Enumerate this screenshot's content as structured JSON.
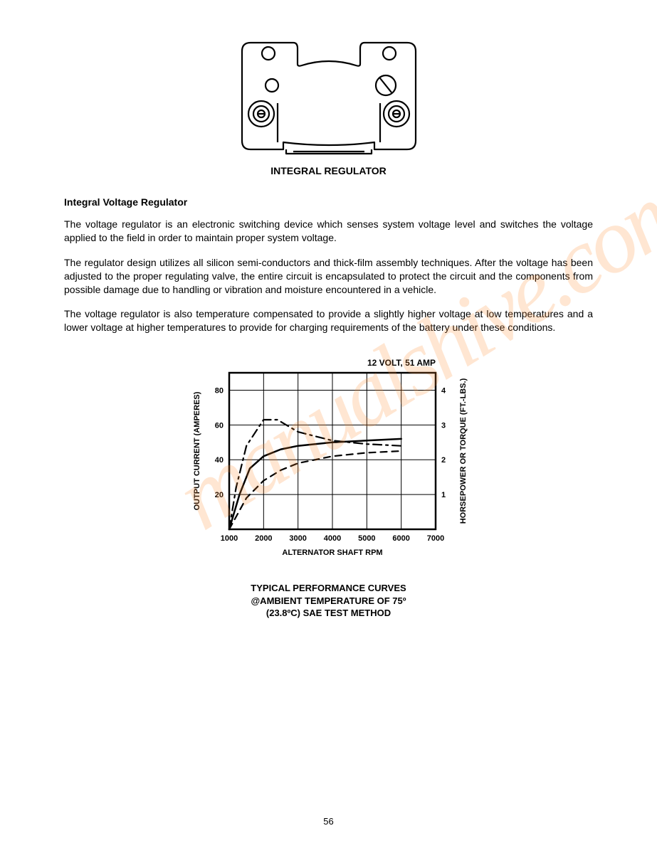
{
  "figure1": {
    "caption": "INTEGRAL REGULATOR",
    "stroke_color": "#000000",
    "stroke_width": 2.2,
    "fill": "#ffffff"
  },
  "section_heading": "Integral Voltage Regulator",
  "para1": "The voltage regulator is an electronic switching device which senses system voltage level and switches the voltage applied to the field in order to maintain proper system voltage.",
  "para2": "The regulator design utilizes all silicon semi-conductors and thick-film assembly techniques. After the voltage has been adjusted to the proper regulating valve, the entire circuit is encapsulated to protect the circuit and the components from possible damage due to handling or vibration and moisture encountered in a vehicle.",
  "para3": "The voltage regulator is also temperature compensated to provide a slightly higher voltage at low temperatures and a lower voltage at higher temperatures to provide for charging requirements of the battery under these conditions.",
  "chart": {
    "type": "line",
    "title_top": "12 VOLT, 51 AMP",
    "y_left_label": "OUTPUT CURRENT (AMPERES)",
    "y_right_label": "HORSEPOWER OR TORQUE (FT.-LBS.)",
    "x_label": "ALTERNATOR SHAFT RPM",
    "caption_line1": "TYPICAL PERFORMANCE CURVES",
    "caption_line2": "@AMBIENT TEMPERATURE OF 75º",
    "caption_line3": "(23.8ºC) SAE TEST METHOD",
    "x_ticks": [
      1000,
      2000,
      3000,
      4000,
      5000,
      6000,
      7000
    ],
    "y_left_ticks": [
      20,
      40,
      60,
      80
    ],
    "y_right_ticks": [
      1,
      2,
      3,
      4
    ],
    "xlim": [
      1000,
      7000
    ],
    "ylim_left": [
      0,
      90
    ],
    "ylim_right": [
      0,
      4.5
    ],
    "series": [
      {
        "name": "output-current",
        "style": "solid",
        "width": 2.5,
        "color": "#000000",
        "axis": "left",
        "points": [
          {
            "x": 1000,
            "y": 0
          },
          {
            "x": 1300,
            "y": 20
          },
          {
            "x": 1600,
            "y": 35
          },
          {
            "x": 2000,
            "y": 42
          },
          {
            "x": 2500,
            "y": 46
          },
          {
            "x": 3000,
            "y": 48
          },
          {
            "x": 4000,
            "y": 50
          },
          {
            "x": 5000,
            "y": 51
          },
          {
            "x": 6000,
            "y": 52
          }
        ]
      },
      {
        "name": "horsepower-torque-peak",
        "style": "dash-dot",
        "width": 2.2,
        "color": "#000000",
        "axis": "right",
        "points": [
          {
            "x": 1000,
            "y": 0
          },
          {
            "x": 1200,
            "y": 1.2
          },
          {
            "x": 1500,
            "y": 2.4
          },
          {
            "x": 2000,
            "y": 3.15
          },
          {
            "x": 2400,
            "y": 3.15
          },
          {
            "x": 3000,
            "y": 2.8
          },
          {
            "x": 4000,
            "y": 2.55
          },
          {
            "x": 5000,
            "y": 2.45
          },
          {
            "x": 6000,
            "y": 2.4
          }
        ]
      },
      {
        "name": "horsepower-torque-low",
        "style": "dashed",
        "width": 2.2,
        "color": "#000000",
        "axis": "right",
        "points": [
          {
            "x": 1000,
            "y": 0
          },
          {
            "x": 1500,
            "y": 0.9
          },
          {
            "x": 2000,
            "y": 1.4
          },
          {
            "x": 2500,
            "y": 1.7
          },
          {
            "x": 3000,
            "y": 1.9
          },
          {
            "x": 4000,
            "y": 2.1
          },
          {
            "x": 5000,
            "y": 2.2
          },
          {
            "x": 6000,
            "y": 2.25
          }
        ]
      }
    ],
    "plot": {
      "outer_stroke": "#000000",
      "outer_stroke_width": 2.5,
      "grid_color": "#000000",
      "grid_width": 1,
      "background": "#ffffff",
      "font_family": "Arial",
      "tick_fontsize": 11,
      "label_fontsize": 11,
      "title_fontsize": 12
    }
  },
  "watermark_text": "manualshive.com",
  "page_number": "56"
}
